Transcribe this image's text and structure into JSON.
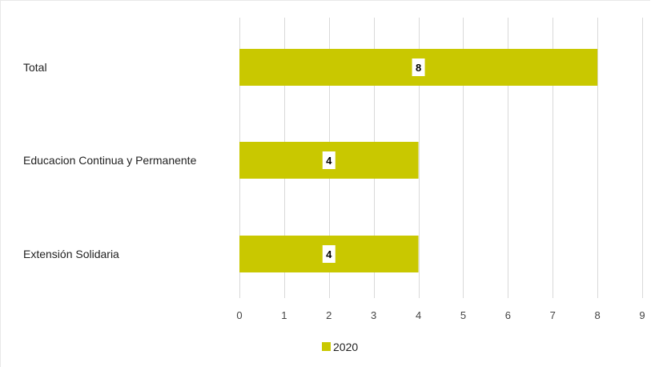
{
  "chart_data": {
    "type": "bar",
    "orientation": "horizontal",
    "categories": [
      "Total",
      "Educacion Continua y Permanente",
      "Extensión Solidaria"
    ],
    "series": [
      {
        "name": "2020",
        "values": [
          8,
          4,
          4
        ],
        "color": "#c9c800"
      }
    ],
    "xlim": [
      0,
      9
    ],
    "x_ticks": [
      0,
      1,
      2,
      3,
      4,
      5,
      6,
      7,
      8,
      9
    ],
    "grid": "vertical",
    "legend": "bottom-center",
    "data_labels": true
  }
}
